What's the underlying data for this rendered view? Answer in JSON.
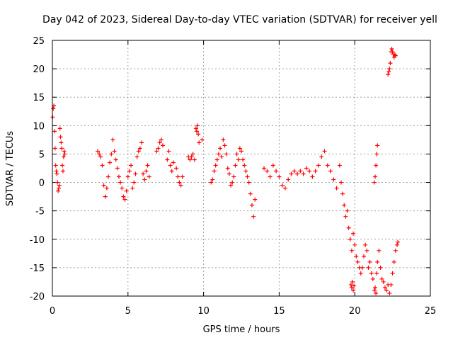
{
  "chart_data": {
    "type": "scatter",
    "title": "Day 042 of 2023, Sidereal Day-to-day VTEC variation (SDTVAR) for receiver yell",
    "xlabel": "GPS time / hours",
    "ylabel": "SDTVAR / TECUs",
    "xlim": [
      0,
      25
    ],
    "ylim": [
      -20,
      25
    ],
    "xticks": [
      0,
      5,
      10,
      15,
      20,
      25
    ],
    "yticks": [
      -20,
      -15,
      -10,
      -5,
      0,
      5,
      10,
      15,
      20,
      25
    ],
    "grid": true,
    "marker": "+",
    "series": [
      {
        "name": "SDTVAR",
        "color": "#ff0000",
        "x": [
          0.02,
          0.06,
          0.1,
          0.14,
          0.18,
          0.22,
          0.26,
          0.3,
          0.34,
          0.38,
          0.42,
          0.46,
          0.5,
          0.54,
          0.58,
          0.62,
          0.66,
          0.7,
          0.74,
          0.78,
          0.82,
          3.0,
          3.1,
          3.2,
          3.3,
          3.4,
          3.5,
          3.6,
          3.7,
          3.8,
          3.9,
          4.0,
          4.1,
          4.2,
          4.3,
          4.4,
          4.5,
          4.6,
          4.7,
          4.8,
          4.9,
          5.0,
          5.1,
          5.2,
          5.3,
          5.4,
          5.5,
          5.6,
          5.7,
          5.8,
          5.9,
          6.0,
          6.1,
          6.2,
          6.3,
          6.4,
          6.9,
          7.0,
          7.1,
          7.2,
          7.3,
          7.6,
          7.7,
          7.8,
          7.9,
          8.0,
          8.2,
          8.3,
          8.4,
          8.5,
          8.6,
          9.0,
          9.1,
          9.2,
          9.3,
          9.4,
          9.5,
          9.55,
          9.6,
          9.65,
          9.7,
          9.9,
          10.5,
          10.6,
          10.7,
          10.8,
          10.9,
          11.0,
          11.1,
          11.2,
          11.3,
          11.4,
          11.5,
          11.6,
          11.7,
          11.8,
          11.9,
          12.0,
          12.1,
          12.2,
          12.3,
          12.4,
          12.5,
          12.6,
          12.7,
          12.8,
          12.9,
          13.0,
          13.1,
          13.2,
          13.3,
          13.4,
          14.0,
          14.2,
          14.4,
          14.6,
          14.8,
          15.0,
          15.2,
          15.4,
          15.6,
          15.8,
          16.0,
          16.2,
          16.4,
          16.6,
          16.8,
          17.0,
          17.2,
          17.4,
          17.6,
          17.8,
          18.0,
          18.2,
          18.4,
          18.6,
          18.8,
          19.0,
          19.1,
          19.2,
          19.3,
          19.4,
          19.5,
          19.6,
          19.7,
          19.8,
          19.9,
          20.0,
          20.1,
          20.2,
          20.3,
          20.4,
          20.5,
          20.6,
          20.7,
          20.8,
          20.9,
          21.0,
          21.1,
          21.2,
          21.3,
          21.35,
          21.4,
          21.45,
          21.5,
          21.6,
          21.7,
          21.8,
          21.9,
          22.0,
          22.1,
          22.2,
          22.3,
          22.4,
          22.5,
          22.6,
          22.7,
          22.8,
          22.85
        ],
        "y": [
          11.5,
          13.0,
          13.5,
          9.0,
          6.0,
          3.0,
          2.0,
          1.5,
          0.0,
          -1.5,
          -1.0,
          -0.5,
          9.5,
          8.0,
          7.0,
          6.0,
          3.0,
          2.0,
          4.5,
          5.5,
          5.0,
          5.5,
          5.0,
          4.5,
          3.0,
          -0.5,
          -2.5,
          -1.0,
          1.0,
          3.5,
          5.0,
          7.5,
          5.5,
          4.0,
          2.5,
          1.0,
          0.0,
          -1.0,
          -2.5,
          -3.0,
          -1.5,
          1.0,
          2.0,
          3.0,
          -1.0,
          0.0,
          1.5,
          4.5,
          5.5,
          6.0,
          7.0,
          1.5,
          0.5,
          2.0,
          3.0,
          1.0,
          5.5,
          6.0,
          7.0,
          7.5,
          6.5,
          4.0,
          5.5,
          3.0,
          2.0,
          3.5,
          2.5,
          1.0,
          0.0,
          -0.5,
          1.0,
          4.5,
          4.0,
          4.5,
          5.0,
          4.0,
          9.5,
          9.0,
          10.0,
          8.5,
          7.0,
          7.5,
          0.0,
          0.5,
          2.0,
          3.0,
          4.0,
          5.0,
          6.0,
          4.5,
          7.5,
          6.5,
          5.0,
          2.5,
          1.5,
          -0.5,
          0.0,
          1.0,
          3.0,
          5.0,
          4.0,
          6.0,
          5.5,
          4.0,
          3.0,
          2.0,
          1.0,
          0.0,
          -2.0,
          -4.0,
          -6.0,
          -3.0,
          2.5,
          2.0,
          1.0,
          3.0,
          2.0,
          1.0,
          -0.5,
          -1.0,
          0.5,
          1.5,
          2.0,
          1.5,
          2.0,
          1.5,
          2.5,
          2.0,
          1.0,
          2.0,
          3.0,
          4.5,
          5.5,
          3.0,
          2.0,
          0.5,
          -1.0,
          3.0,
          0.0,
          -2.0,
          -4.0,
          -6.0,
          -5.0,
          -8.0,
          -10.0,
          -12.0,
          -9.0,
          -11.0,
          -13.0,
          -14.0,
          -15.0,
          -16.0,
          -15.0,
          -13.0,
          -11.0,
          -12.0,
          -15.0,
          -14.0,
          -16.0,
          -17.0,
          -19.0,
          -18.5,
          -19.5,
          -16.0,
          -14.0,
          -12.0,
          -15.0,
          -17.0,
          -17.5,
          -18.5,
          -19.0,
          -18.0,
          -19.5,
          -18.0,
          -16.0,
          -14.0,
          -12.0,
          -11.0,
          -10.5
        ]
      },
      {
        "name": "SDTVAR-extra",
        "color": "#ff0000",
        "x": [
          19.75,
          19.8,
          19.85,
          19.9,
          19.95,
          21.3,
          21.35,
          21.4,
          21.45,
          21.5,
          22.2,
          22.25,
          22.3,
          22.35,
          22.4,
          22.45,
          22.5,
          22.55,
          22.6,
          22.65,
          22.7
        ],
        "y": [
          -18.0,
          -18.5,
          -17.5,
          -19.0,
          -18.2,
          0.0,
          1.0,
          3.0,
          5.0,
          6.5,
          19.0,
          19.5,
          20.0,
          21.0,
          23.0,
          23.5,
          23.0,
          22.5,
          22.0,
          22.5,
          22.3
        ]
      }
    ]
  }
}
